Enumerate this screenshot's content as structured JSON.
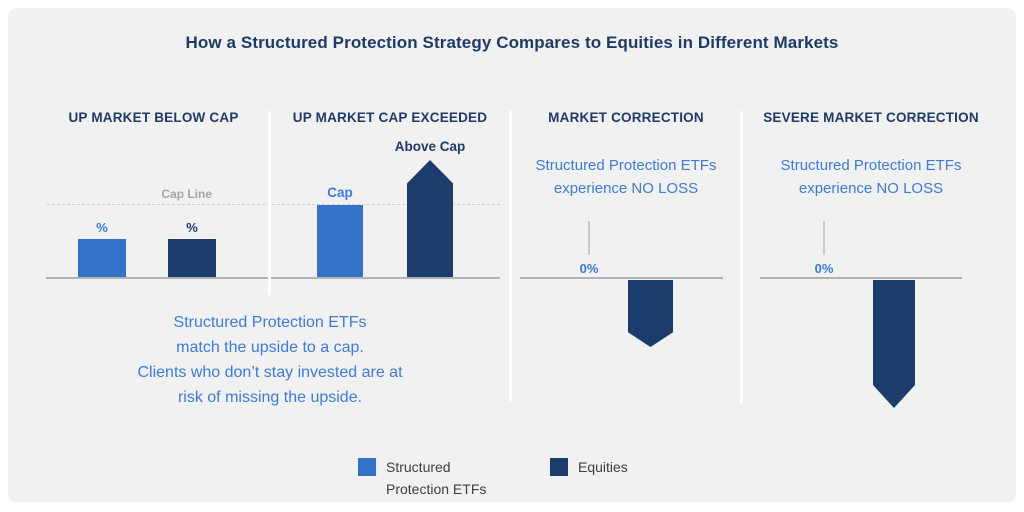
{
  "title": "How a Structured Protection Strategy Compares to Equities in Different Markets",
  "colors": {
    "background": "#F1F1F2",
    "frame": "#FFFFFF",
    "navy_dark": "#1F3A68",
    "bar_structured": "#3372C6",
    "bar_equities": "#1C3C6B",
    "text_blue": "#3C7BD9",
    "gray_label": "#A6A6A6",
    "axis_gray": "#B3B3B3"
  },
  "panels": [
    {
      "header": "UP MARKET BELOW CAP",
      "cap_line_label": "Cap Line",
      "structured_bar_label": "%",
      "equities_bar_label": "%"
    },
    {
      "header": "UP MARKET CAP EXCEEDED",
      "structured_bar_label": "Cap",
      "equities_bar_label": "Above Cap"
    },
    {
      "header": "MARKET CORRECTION",
      "note_line1": "Structured Protection ETFs",
      "note_line2": "experience NO LOSS",
      "zero_label": "0%"
    },
    {
      "header": "SEVERE MARKET CORRECTION",
      "note_line1": "Structured Protection ETFs",
      "note_line2": "experience NO LOSS",
      "zero_label": "0%"
    }
  ],
  "caption": {
    "lines": [
      "Structured Protection ETFs",
      "match the upside to a cap.",
      "Clients who don’t stay invested are at",
      "risk of missing the upside."
    ]
  },
  "legend": {
    "items": [
      {
        "label": "Structured Protection ETFs",
        "color": "#3372C6"
      },
      {
        "label": "Equities",
        "color": "#1C3C6B"
      }
    ]
  },
  "chart_data": [
    {
      "type": "bar",
      "title": "UP MARKET BELOW CAP",
      "units": "relative, Cap = 1.0",
      "cap_line": 1.0,
      "series": [
        {
          "name": "Structured Protection ETFs",
          "label": "%",
          "value": 0.5
        },
        {
          "name": "Equities",
          "label": "%",
          "value": 0.5
        }
      ],
      "annotations": [
        "Cap Line"
      ]
    },
    {
      "type": "bar",
      "title": "UP MARKET CAP EXCEEDED",
      "units": "relative, Cap = 1.0",
      "cap_line": 1.0,
      "series": [
        {
          "name": "Structured Protection ETFs",
          "label": "Cap",
          "value": 1.0
        },
        {
          "name": "Equities",
          "label": "Above Cap",
          "value": 1.6,
          "shape": "upward-arrow"
        }
      ]
    },
    {
      "type": "bar",
      "title": "MARKET CORRECTION",
      "units": "relative, Cap = 1.0",
      "note": "Structured Protection ETFs experience NO LOSS",
      "series": [
        {
          "name": "Structured Protection ETFs",
          "label": "0%",
          "value": 0
        },
        {
          "name": "Equities",
          "value": -0.9,
          "shape": "downward-arrow"
        }
      ]
    },
    {
      "type": "bar",
      "title": "SEVERE MARKET CORRECTION",
      "units": "relative, Cap = 1.0",
      "note": "Structured Protection ETFs experience NO LOSS",
      "series": [
        {
          "name": "Structured Protection ETFs",
          "label": "0%",
          "value": 0
        },
        {
          "name": "Equities",
          "value": -1.75,
          "shape": "downward-arrow"
        }
      ]
    }
  ]
}
